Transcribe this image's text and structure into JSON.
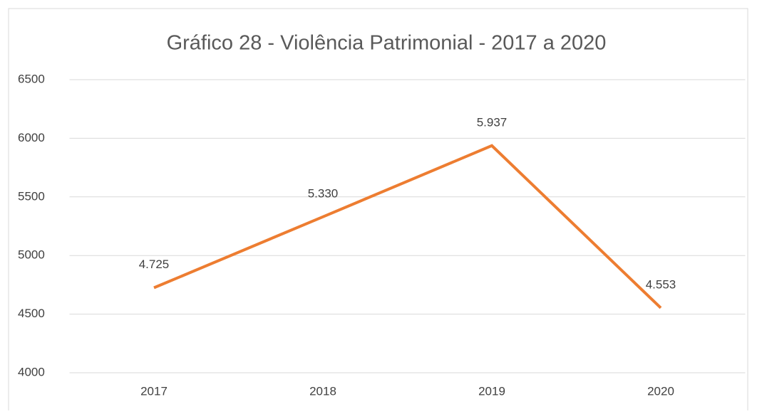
{
  "chart_data": {
    "type": "line",
    "title": "Gráfico 28 - Violência Patrimonial - 2017 a 2020",
    "categories": [
      "2017",
      "2018",
      "2019",
      "2020"
    ],
    "series": [
      {
        "name": "Violência Patrimonial",
        "color": "#ed7d31",
        "values": [
          4725,
          5330,
          5937,
          4553
        ],
        "value_labels": [
          "4.725",
          "5.330",
          "5.937",
          "4.553"
        ]
      }
    ],
    "ylim": [
      4000,
      6500
    ],
    "yticks": [
      4000,
      4500,
      5000,
      5500,
      6000,
      6500
    ],
    "grid": true
  }
}
